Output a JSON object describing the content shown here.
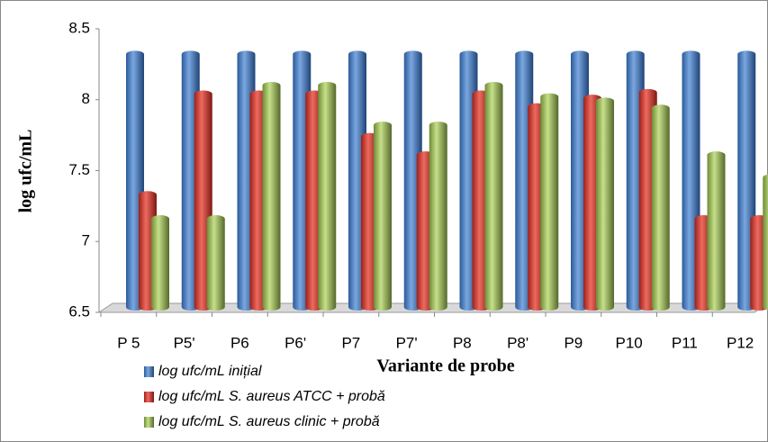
{
  "chart_data": {
    "type": "bar3d",
    "x_label": "Variante de probe",
    "y_label": "log ufc/mL",
    "categories": [
      "P 5",
      "P5'",
      "P6",
      "P6'",
      "P7",
      "P7'",
      "P8",
      "P8'",
      "P9",
      "P10",
      "P11",
      "P12"
    ],
    "series": [
      {
        "name": "log ufc/mL inițial",
        "color": "#4a7ebb",
        "values": [
          8.32,
          8.32,
          8.32,
          8.32,
          8.32,
          8.32,
          8.32,
          8.32,
          8.32,
          8.32,
          8.32,
          8.32
        ]
      },
      {
        "name": "log ufc/mL  S. aureus ATCC + probă",
        "color": "#d03a30",
        "values": [
          7.33,
          8.04,
          8.04,
          8.04,
          7.74,
          7.61,
          8.04,
          7.95,
          8.01,
          8.05,
          7.16,
          7.16
        ]
      },
      {
        "name": "log ufc/mL  S. aureus clinic + probă",
        "color": "#9bbb59",
        "values": [
          7.16,
          7.16,
          8.1,
          8.1,
          7.82,
          7.82,
          8.1,
          8.02,
          7.99,
          7.94,
          7.61,
          7.45
        ]
      }
    ],
    "ylim": [
      6.5,
      8.5
    ],
    "yticks": [
      6.5,
      7,
      7.5,
      8,
      8.5
    ]
  }
}
